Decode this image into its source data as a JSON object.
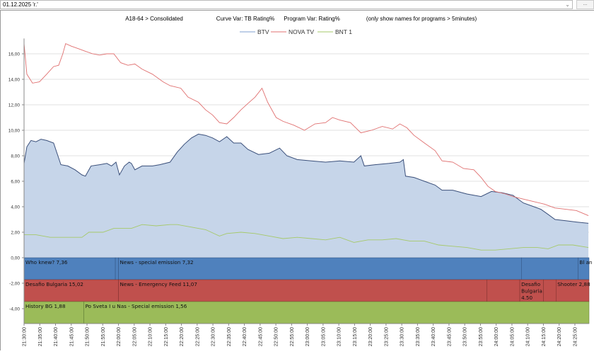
{
  "toolbar": {
    "date_value": "01.12.2025 'r.'",
    "more_label": "..."
  },
  "chart_data": {
    "type": "area",
    "header": {
      "audience": "A18-64 > Consolidated",
      "curve_var": "Curve Var: TB Rating%",
      "program_var": "Program Var: Rating%",
      "note": "(only show names for programs > 5minutes)"
    },
    "legend": [
      "BTV",
      "NOVA TV",
      "BNT 1"
    ],
    "legend_position": "top-center",
    "colors": {
      "BTV": "#7f9fd0",
      "BTV_fill": "#c6d5e9",
      "BTV_line": "#3a4f7a",
      "NOVA TV": "#e07070",
      "BNT 1": "#a6c96a",
      "band_BTV": "#4f81bd",
      "band_NOVA": "#c0504d",
      "band_BNT": "#9bbb59"
    },
    "ylim": [
      -5.2,
      17.2
    ],
    "y_ticks": [
      "-4,00",
      "-2,00",
      "0,00",
      "2,00",
      "4,00",
      "6,00",
      "8,00",
      "10,00",
      "12,00",
      "14,00",
      "16,00"
    ],
    "y_tick_values": [
      -4,
      -2,
      0,
      2,
      4,
      6,
      8,
      10,
      12,
      14,
      16
    ],
    "x_start": "21:30:00",
    "x_range_minutes": [
      0,
      179.5
    ],
    "x_ticks": [
      "21:30:00",
      "21:35:00",
      "21:40:00",
      "21:45:00",
      "21:50:00",
      "21:55:00",
      "22:00:00",
      "22:05:00",
      "22:10:00",
      "22:15:00",
      "22:20:00",
      "22:25:00",
      "22:30:00",
      "22:35:00",
      "22:40:00",
      "22:45:00",
      "22:50:00",
      "22:55:00",
      "23:00:00",
      "23:05:00",
      "23:10:00",
      "23:15:00",
      "23:20:00",
      "23:25:00",
      "23:30:00",
      "23:35:00",
      "23:40:00",
      "23:45:00",
      "23:50:00",
      "23:55:00",
      "24:00:00",
      "24:05:00",
      "24:10:00",
      "24:15:00",
      "24:20:00",
      "24:25:00"
    ],
    "series": [
      {
        "name": "BTV",
        "points": [
          [
            0,
            7.4
          ],
          [
            0.9,
            8.7
          ],
          [
            2.2,
            9.2
          ],
          [
            3.8,
            9.1
          ],
          [
            5.4,
            9.3
          ],
          [
            7.2,
            9.2
          ],
          [
            9.4,
            9.0
          ],
          [
            11.7,
            7.3
          ],
          [
            13.9,
            7.2
          ],
          [
            16.2,
            6.9
          ],
          [
            18.4,
            6.5
          ],
          [
            19.5,
            6.4
          ],
          [
            21.3,
            7.2
          ],
          [
            24,
            7.3
          ],
          [
            26.3,
            7.4
          ],
          [
            27.8,
            7.2
          ],
          [
            29.2,
            7.5
          ],
          [
            30.3,
            6.5
          ],
          [
            31.9,
            7.2
          ],
          [
            33.4,
            7.5
          ],
          [
            34.1,
            7.4
          ],
          [
            35.2,
            6.9
          ],
          [
            37.5,
            7.2
          ],
          [
            40.8,
            7.2
          ],
          [
            43.1,
            7.3
          ],
          [
            46.4,
            7.5
          ],
          [
            48.7,
            8.3
          ],
          [
            50.9,
            8.9
          ],
          [
            53.2,
            9.4
          ],
          [
            55.4,
            9.7
          ],
          [
            57.7,
            9.6
          ],
          [
            59.9,
            9.4
          ],
          [
            62.1,
            9.1
          ],
          [
            64.4,
            9.5
          ],
          [
            66.6,
            9.0
          ],
          [
            68.9,
            9.0
          ],
          [
            71.1,
            8.5
          ],
          [
            74.5,
            8.1
          ],
          [
            77.9,
            8.2
          ],
          [
            81.2,
            8.6
          ],
          [
            83.5,
            8.0
          ],
          [
            86.8,
            7.7
          ],
          [
            91.3,
            7.6
          ],
          [
            95.8,
            7.5
          ],
          [
            100.3,
            7.6
          ],
          [
            104.8,
            7.5
          ],
          [
            107,
            8.0
          ],
          [
            108.1,
            7.2
          ],
          [
            111.5,
            7.3
          ],
          [
            116,
            7.4
          ],
          [
            119.4,
            7.5
          ],
          [
            120.5,
            7.7
          ],
          [
            121.2,
            6.4
          ],
          [
            123.9,
            6.3
          ],
          [
            127.2,
            6.0
          ],
          [
            130.6,
            5.7
          ],
          [
            132.8,
            5.3
          ],
          [
            136.2,
            5.3
          ],
          [
            140.7,
            5.0
          ],
          [
            145.2,
            4.8
          ],
          [
            148.5,
            5.2
          ],
          [
            151.9,
            5.1
          ],
          [
            155.3,
            4.9
          ],
          [
            158.6,
            4.3
          ],
          [
            162,
            4.0
          ],
          [
            164.2,
            3.8
          ],
          [
            166.5,
            3.4
          ],
          [
            168.7,
            3.0
          ],
          [
            172.1,
            2.9
          ],
          [
            175.5,
            2.8
          ],
          [
            179.3,
            2.7
          ]
        ]
      },
      {
        "name": "NOVA TV",
        "points": [
          [
            0,
            16.8
          ],
          [
            0.9,
            14.4
          ],
          [
            2.7,
            13.7
          ],
          [
            4.9,
            13.8
          ],
          [
            7.2,
            14.4
          ],
          [
            9.4,
            15.0
          ],
          [
            11,
            15.1
          ],
          [
            12.3,
            16.0
          ],
          [
            13.2,
            16.8
          ],
          [
            15,
            16.6
          ],
          [
            17.3,
            16.4
          ],
          [
            19.5,
            16.2
          ],
          [
            21.8,
            16.0
          ],
          [
            24,
            15.9
          ],
          [
            26.3,
            16.0
          ],
          [
            28.5,
            16.0
          ],
          [
            30.7,
            15.3
          ],
          [
            33,
            15.1
          ],
          [
            35.2,
            15.2
          ],
          [
            37.5,
            14.8
          ],
          [
            40.8,
            14.4
          ],
          [
            44.2,
            13.8
          ],
          [
            46.4,
            13.5
          ],
          [
            49.8,
            13.3
          ],
          [
            52.1,
            12.6
          ],
          [
            55.4,
            12.2
          ],
          [
            57.7,
            11.6
          ],
          [
            59.9,
            11.2
          ],
          [
            62.1,
            10.6
          ],
          [
            64.4,
            10.5
          ],
          [
            66.6,
            11.0
          ],
          [
            68.9,
            11.6
          ],
          [
            71.1,
            12.1
          ],
          [
            73.4,
            12.6
          ],
          [
            75.6,
            13.3
          ],
          [
            77.4,
            12.2
          ],
          [
            80.1,
            11.0
          ],
          [
            82.3,
            10.7
          ],
          [
            85.7,
            10.4
          ],
          [
            89.1,
            10.0
          ],
          [
            92.4,
            10.5
          ],
          [
            95.8,
            10.6
          ],
          [
            98,
            11.0
          ],
          [
            100.3,
            10.8
          ],
          [
            103.7,
            10.6
          ],
          [
            107,
            9.8
          ],
          [
            110.4,
            10.0
          ],
          [
            113.8,
            10.3
          ],
          [
            117.1,
            10.1
          ],
          [
            119.4,
            10.5
          ],
          [
            121.6,
            10.2
          ],
          [
            123.9,
            9.6
          ],
          [
            127.2,
            9.0
          ],
          [
            130.6,
            8.4
          ],
          [
            132.8,
            7.6
          ],
          [
            136.2,
            7.5
          ],
          [
            139.6,
            7.0
          ],
          [
            142.9,
            6.9
          ],
          [
            145.2,
            6.3
          ],
          [
            147.4,
            5.6
          ],
          [
            149.7,
            5.2
          ],
          [
            153,
            5.0
          ],
          [
            155.3,
            4.8
          ],
          [
            158.6,
            4.6
          ],
          [
            162,
            4.4
          ],
          [
            165.4,
            4.2
          ],
          [
            168.7,
            3.9
          ],
          [
            172.1,
            3.8
          ],
          [
            175.5,
            3.7
          ],
          [
            179.3,
            3.3
          ]
        ]
      },
      {
        "name": "BNT 1",
        "points": [
          [
            0,
            1.8
          ],
          [
            3.8,
            1.8
          ],
          [
            8.3,
            1.6
          ],
          [
            15,
            1.6
          ],
          [
            18.4,
            1.6
          ],
          [
            20.6,
            2.0
          ],
          [
            25.1,
            2.0
          ],
          [
            28.5,
            2.3
          ],
          [
            30.7,
            2.3
          ],
          [
            34.1,
            2.3
          ],
          [
            37.5,
            2.6
          ],
          [
            42,
            2.5
          ],
          [
            46.4,
            2.6
          ],
          [
            48.7,
            2.6
          ],
          [
            53.2,
            2.4
          ],
          [
            57.7,
            2.2
          ],
          [
            62.1,
            1.7
          ],
          [
            64.4,
            1.9
          ],
          [
            68.9,
            2.0
          ],
          [
            73.4,
            1.9
          ],
          [
            77.9,
            1.7
          ],
          [
            82.3,
            1.5
          ],
          [
            86.8,
            1.6
          ],
          [
            91.3,
            1.5
          ],
          [
            95.8,
            1.4
          ],
          [
            100.3,
            1.6
          ],
          [
            104.8,
            1.2
          ],
          [
            109.3,
            1.4
          ],
          [
            113.8,
            1.4
          ],
          [
            118.2,
            1.5
          ],
          [
            122.7,
            1.3
          ],
          [
            127.2,
            1.3
          ],
          [
            131.7,
            1.0
          ],
          [
            136.2,
            0.9
          ],
          [
            140.7,
            0.8
          ],
          [
            145.2,
            0.6
          ],
          [
            149.7,
            0.6
          ],
          [
            154.1,
            0.7
          ],
          [
            158.6,
            0.8
          ],
          [
            163.1,
            0.8
          ],
          [
            166.5,
            0.7
          ],
          [
            169.8,
            1.0
          ],
          [
            174.3,
            1.0
          ],
          [
            179.3,
            0.8
          ]
        ]
      }
    ],
    "program_bands": [
      {
        "channel": "BTV",
        "programs": [
          {
            "start": 0,
            "end": 29,
            "label": "Who knew? 7,36"
          },
          {
            "start": 29,
            "end": 30,
            "label": ""
          },
          {
            "start": 30,
            "end": 158,
            "label": "News - special emission 7,32"
          },
          {
            "start": 158,
            "end": 176,
            "label": ""
          },
          {
            "start": 176,
            "end": 179.5,
            "label": "Bl an ca"
          }
        ]
      },
      {
        "channel": "NOVA TV",
        "programs": [
          {
            "start": 0,
            "end": 30,
            "label": "Desafio Bulgaria 15,02"
          },
          {
            "start": 30,
            "end": 147,
            "label": "News - Emergency Feed 11,07"
          },
          {
            "start": 147,
            "end": 157.5,
            "label": ""
          },
          {
            "start": 157.5,
            "end": 165,
            "label": "Desafio Bulgaria 4.50"
          },
          {
            "start": 165,
            "end": 169,
            "label": ""
          },
          {
            "start": 169,
            "end": 179.5,
            "label": "Shooter 2,88"
          }
        ]
      },
      {
        "channel": "BNT 1",
        "programs": [
          {
            "start": 0,
            "end": 19,
            "label": "History BG 1,88"
          },
          {
            "start": 19,
            "end": 179.5,
            "label": "Po Sveta I u Nas - Special emission 1,56"
          }
        ]
      }
    ]
  }
}
